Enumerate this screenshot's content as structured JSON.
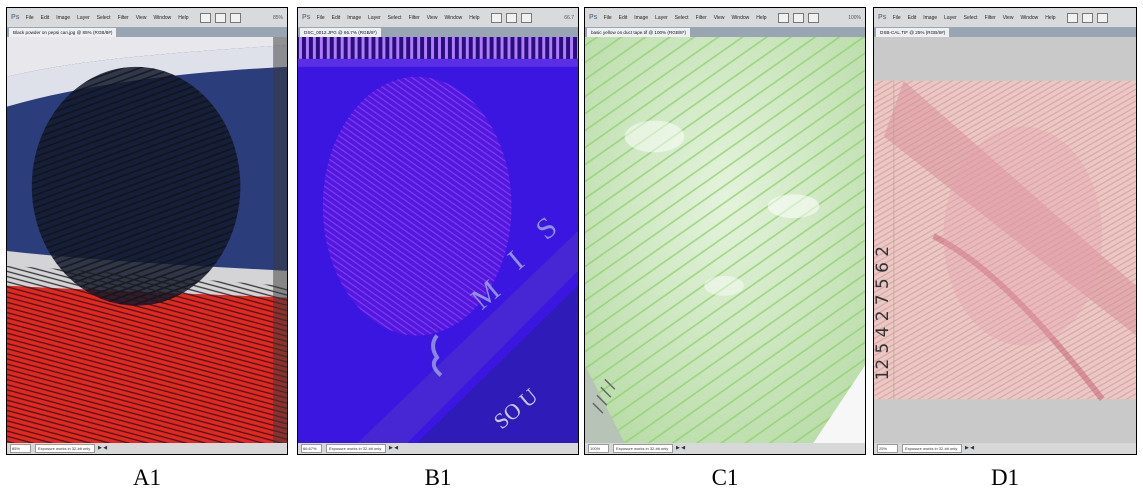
{
  "menu": {
    "app_icon": "Ps",
    "items": [
      "File",
      "Edit",
      "Image",
      "Layer",
      "Select",
      "Filter",
      "View",
      "Window",
      "Help"
    ]
  },
  "panels": [
    {
      "label": "A1",
      "zoom": "85%",
      "tab_title": "Black powder on pepsi can.jpg @ 85% (RGB/8#)",
      "status_zoom": "85%",
      "status_info": "Exposure works in 32-bit only"
    },
    {
      "label": "B1",
      "zoom": "66.7",
      "tab_title": "DSC_0012.JPG @ 66.7% (RGB/8*)",
      "status_zoom": "66.67%",
      "status_info": "Exposure works in 32-bit only"
    },
    {
      "label": "C1",
      "zoom": "100%",
      "tab_title": "basic yellow on duct tape.tif @ 100% (RGB/8*)",
      "status_zoom": "100%",
      "status_info": "Exposure works in 32-bit only"
    },
    {
      "label": "D1",
      "zoom": "",
      "tab_title": "DSB-CAL.TIF @ 25% (RGB/8#)",
      "status_zoom": "25%",
      "status_info": "Exposure works in 32-bit only"
    }
  ],
  "image_text": {
    "b1_letters": [
      "M",
      "I",
      "S"
    ],
    "b1_bottom": "SO U",
    "d1_handwriting": "12 5 4 2 7 5 6 2"
  },
  "colors": {
    "menubar": "#d9dadc",
    "tab_strip": "#9aa5b4",
    "a1_blue": "#2c3d7c",
    "a1_red": "#e7261f",
    "b1_purple": "#3b16e0",
    "c1_green": "#c9e8bd",
    "d1_pink": "#e9c9c3"
  }
}
